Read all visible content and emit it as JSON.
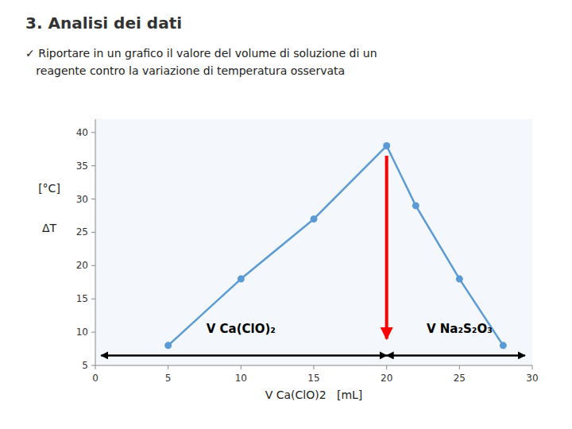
{
  "chart_data": {
    "type": "line",
    "title": "3. Analisi dei dati",
    "subtitle": [
      "✓ Riportare in un grafico il valore del volume di soluzione di un",
      "   reagente contro la variazione di temperatura osservata"
    ],
    "x": [
      5,
      10,
      15,
      20,
      22,
      25,
      28
    ],
    "values": [
      8,
      18,
      27,
      38,
      29,
      18,
      8
    ],
    "color": "#5B9BD5",
    "marker": "circle",
    "xlabel": "V Ca(ClO)2   [mL]",
    "ylabel": [
      "[°C]",
      "ΔT"
    ],
    "xlim": [
      0,
      30
    ],
    "ylim": [
      5,
      42
    ],
    "xticks": [
      0,
      5,
      10,
      15,
      20,
      25,
      30
    ],
    "yticks": [
      5,
      10,
      15,
      20,
      25,
      30,
      35,
      40
    ],
    "grid": false,
    "annotations": [
      {
        "text": "V Ca(ClO)₂",
        "x": 10,
        "y": 10.5
      },
      {
        "text": "V Na₂S₂O₃",
        "x": 25,
        "y": 10.5
      },
      {
        "arrow": "both",
        "from": [
          0.4,
          6.5
        ],
        "to": [
          20,
          6.5
        ],
        "color": "black"
      },
      {
        "arrow": "both",
        "from": [
          20,
          6.5
        ],
        "to": [
          29.5,
          6.5
        ],
        "color": "black"
      },
      {
        "arrow": "end",
        "from": [
          20,
          36.5
        ],
        "to": [
          20,
          9.0
        ],
        "color": "red"
      }
    ]
  }
}
